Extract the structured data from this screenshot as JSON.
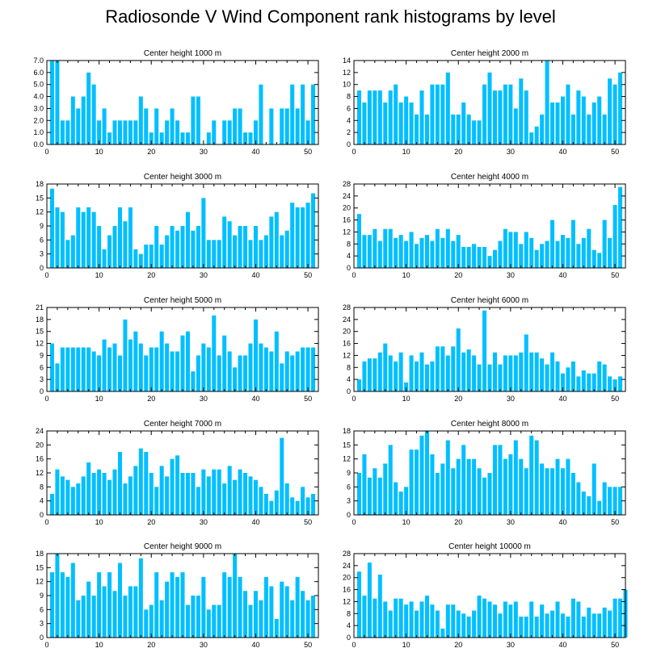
{
  "title": "Radiosonde V Wind Component rank histograms by level",
  "style": {
    "bar_color": "#00bfff",
    "axis_color": "#000000"
  },
  "chart_data": [
    {
      "type": "bar",
      "title": "Center height 1000 m",
      "xlim": [
        0,
        52
      ],
      "xticks": [
        0,
        10,
        20,
        30,
        40,
        50
      ],
      "ylim": [
        0,
        7
      ],
      "yticks": [
        0,
        1,
        2,
        3,
        4,
        5,
        6,
        7
      ],
      "ytick_labels": [
        "0.0",
        "1.0",
        "2.0",
        "3.0",
        "4.0",
        "5.0",
        "6.0",
        "7.0"
      ],
      "values": [
        7,
        7,
        2,
        2,
        4,
        3,
        4,
        6,
        5,
        2,
        3,
        1,
        2,
        2,
        2,
        2,
        2,
        4,
        3,
        1,
        3,
        1,
        2,
        3,
        2,
        1,
        1,
        4,
        4,
        0,
        1,
        2,
        0,
        2,
        2,
        3,
        3,
        1,
        1,
        2,
        5,
        0,
        3,
        0,
        3,
        3,
        5,
        3,
        5,
        2,
        5
      ]
    },
    {
      "type": "bar",
      "title": "Center height 2000 m",
      "xlim": [
        0,
        52
      ],
      "xticks": [
        0,
        10,
        20,
        30,
        40,
        50
      ],
      "ylim": [
        0,
        14
      ],
      "yticks": [
        0,
        2,
        4,
        6,
        8,
        10,
        12,
        14
      ],
      "ytick_labels": [
        "0",
        "2",
        "4",
        "6",
        "8",
        "10",
        "12",
        "14"
      ],
      "values": [
        9,
        7,
        9,
        9,
        9,
        7,
        9,
        10,
        7,
        8,
        7,
        5,
        9,
        5,
        10,
        10,
        10,
        12,
        5,
        5,
        7,
        5,
        4,
        4,
        10,
        12,
        9,
        9,
        10,
        10,
        6,
        11,
        9,
        2,
        3,
        5,
        14,
        7,
        7,
        8,
        10,
        5,
        9,
        8,
        5,
        7,
        8,
        5,
        11,
        10,
        12
      ]
    },
    {
      "type": "bar",
      "title": "Center height 3000 m",
      "xlim": [
        0,
        52
      ],
      "xticks": [
        0,
        10,
        20,
        30,
        40,
        50
      ],
      "ylim": [
        0,
        18
      ],
      "yticks": [
        0,
        3,
        6,
        9,
        12,
        15,
        18
      ],
      "ytick_labels": [
        "0",
        "3",
        "6",
        "9",
        "12",
        "15",
        "18"
      ],
      "values": [
        17,
        13,
        12,
        6,
        7,
        13,
        12,
        13,
        12,
        9,
        4,
        7,
        9,
        13,
        10,
        13,
        4,
        3,
        5,
        5,
        9,
        5,
        7,
        9,
        8,
        9,
        12,
        8,
        9,
        15,
        6,
        6,
        6,
        11,
        10,
        7,
        9,
        9,
        6,
        9,
        6,
        7,
        11,
        12,
        7,
        8,
        14,
        13,
        13,
        14,
        16
      ]
    },
    {
      "type": "bar",
      "title": "Center height 4000 m",
      "xlim": [
        0,
        52
      ],
      "xticks": [
        0,
        10,
        20,
        30,
        40,
        50
      ],
      "ylim": [
        0,
        28
      ],
      "yticks": [
        0,
        4,
        8,
        12,
        16,
        20,
        24,
        28
      ],
      "ytick_labels": [
        "0",
        "4",
        "8",
        "12",
        "16",
        "20",
        "24",
        "28"
      ],
      "values": [
        18,
        11,
        11,
        13,
        9,
        13,
        13,
        10,
        11,
        9,
        12,
        8,
        10,
        11,
        9,
        13,
        10,
        13,
        9,
        11,
        7,
        7,
        8,
        7,
        7,
        4,
        6,
        9,
        13,
        12,
        12,
        8,
        12,
        10,
        6,
        8,
        9,
        16,
        9,
        11,
        10,
        16,
        8,
        10,
        13,
        6,
        5,
        16,
        10,
        21,
        27
      ]
    },
    {
      "type": "bar",
      "title": "Center height 5000 m",
      "xlim": [
        0,
        52
      ],
      "xticks": [
        0,
        10,
        20,
        30,
        40,
        50
      ],
      "ylim": [
        0,
        21
      ],
      "yticks": [
        0,
        3,
        6,
        9,
        12,
        15,
        18,
        21
      ],
      "ytick_labels": [
        "0",
        "3",
        "6",
        "9",
        "12",
        "15",
        "18",
        "21"
      ],
      "values": [
        12,
        7,
        11,
        11,
        11,
        11,
        11,
        11,
        10,
        9,
        13,
        11,
        12,
        9,
        18,
        13,
        15,
        12,
        9,
        11,
        11,
        15,
        12,
        10,
        10,
        14,
        15,
        5,
        9,
        12,
        11,
        19,
        9,
        14,
        10,
        6,
        9,
        9,
        12,
        18,
        12,
        11,
        10,
        15,
        7,
        10,
        9,
        10,
        11,
        11,
        11
      ]
    },
    {
      "type": "bar",
      "title": "Center height 6000 m",
      "xlim": [
        0,
        52
      ],
      "xticks": [
        0,
        10,
        20,
        30,
        40,
        50
      ],
      "ylim": [
        0,
        28
      ],
      "yticks": [
        0,
        4,
        8,
        12,
        16,
        20,
        24,
        28
      ],
      "ytick_labels": [
        "0",
        "4",
        "8",
        "12",
        "16",
        "20",
        "24",
        "28"
      ],
      "values": [
        4,
        10,
        11,
        11,
        13,
        16,
        12,
        10,
        13,
        3,
        12,
        10,
        13,
        9,
        10,
        15,
        15,
        12,
        15,
        21,
        13,
        14,
        12,
        9,
        27,
        9,
        13,
        9,
        12,
        12,
        12,
        13,
        19,
        13,
        13,
        11,
        9,
        13,
        10,
        6,
        8,
        10,
        5,
        7,
        6,
        6,
        10,
        9,
        5,
        4,
        5
      ]
    },
    {
      "type": "bar",
      "title": "Center height 7000 m",
      "xlim": [
        0,
        52
      ],
      "xticks": [
        0,
        10,
        20,
        30,
        40,
        50
      ],
      "ylim": [
        0,
        24
      ],
      "yticks": [
        0,
        4,
        8,
        12,
        16,
        20,
        24
      ],
      "ytick_labels": [
        "0",
        "4",
        "8",
        "12",
        "16",
        "20",
        "24"
      ],
      "values": [
        6,
        13,
        11,
        10,
        8,
        9,
        11,
        15,
        12,
        13,
        12,
        10,
        13,
        18,
        9,
        11,
        14,
        19,
        18,
        12,
        8,
        14,
        11,
        16,
        17,
        12,
        12,
        12,
        8,
        13,
        11,
        13,
        13,
        9,
        14,
        10,
        13,
        12,
        11,
        10,
        8,
        6,
        4,
        7,
        22,
        9,
        5,
        4,
        8,
        5,
        6
      ]
    },
    {
      "type": "bar",
      "title": "Center height 8000 m",
      "xlim": [
        0,
        52
      ],
      "xticks": [
        0,
        10,
        20,
        30,
        40,
        50
      ],
      "ylim": [
        0,
        18
      ],
      "yticks": [
        0,
        3,
        6,
        9,
        12,
        15,
        18
      ],
      "ytick_labels": [
        "0",
        "3",
        "6",
        "9",
        "12",
        "15",
        "18"
      ],
      "values": [
        9,
        13,
        8,
        10,
        8,
        11,
        15,
        7,
        5,
        6,
        14,
        14,
        17,
        18,
        13,
        9,
        11,
        16,
        10,
        12,
        15,
        12,
        12,
        10,
        8,
        9,
        15,
        15,
        12,
        13,
        16,
        12,
        10,
        17,
        16,
        11,
        10,
        10,
        12,
        10,
        12,
        9,
        7,
        5,
        4,
        11,
        3,
        7,
        6,
        6,
        6
      ]
    },
    {
      "type": "bar",
      "title": "Center height 9000 m",
      "xlim": [
        0,
        52
      ],
      "xticks": [
        0,
        10,
        20,
        30,
        40,
        50
      ],
      "ylim": [
        0,
        18
      ],
      "yticks": [
        0,
        3,
        6,
        9,
        12,
        15,
        18
      ],
      "ytick_labels": [
        "0",
        "3",
        "6",
        "9",
        "12",
        "15",
        "18"
      ],
      "values": [
        14,
        18,
        14,
        13,
        16,
        8,
        9,
        12,
        9,
        14,
        11,
        14,
        10,
        16,
        9,
        11,
        11,
        17,
        6,
        7,
        14,
        8,
        12,
        14,
        13,
        14,
        7,
        9,
        9,
        13,
        6,
        7,
        7,
        14,
        13,
        18,
        13,
        10,
        7,
        10,
        8,
        13,
        11,
        4,
        12,
        11,
        8,
        13,
        10,
        8,
        9
      ]
    },
    {
      "type": "bar",
      "title": "Center height 10000 m",
      "xlim": [
        0,
        52
      ],
      "xticks": [
        0,
        10,
        20,
        30,
        40,
        50
      ],
      "ylim": [
        0,
        28
      ],
      "yticks": [
        0,
        4,
        8,
        12,
        16,
        20,
        24,
        28
      ],
      "ytick_labels": [
        "0",
        "4",
        "8",
        "12",
        "16",
        "20",
        "24",
        "28"
      ],
      "values": [
        22,
        14,
        25,
        13,
        21,
        12,
        9,
        13,
        13,
        11,
        12,
        9,
        12,
        14,
        11,
        9,
        3,
        11,
        11,
        9,
        8,
        7,
        9,
        14,
        13,
        12,
        11,
        8,
        12,
        11,
        12,
        7,
        7,
        12,
        7,
        11,
        8,
        9,
        12,
        8,
        7,
        13,
        12,
        7,
        10,
        8,
        8,
        10,
        9,
        13,
        13,
        16
      ]
    }
  ]
}
